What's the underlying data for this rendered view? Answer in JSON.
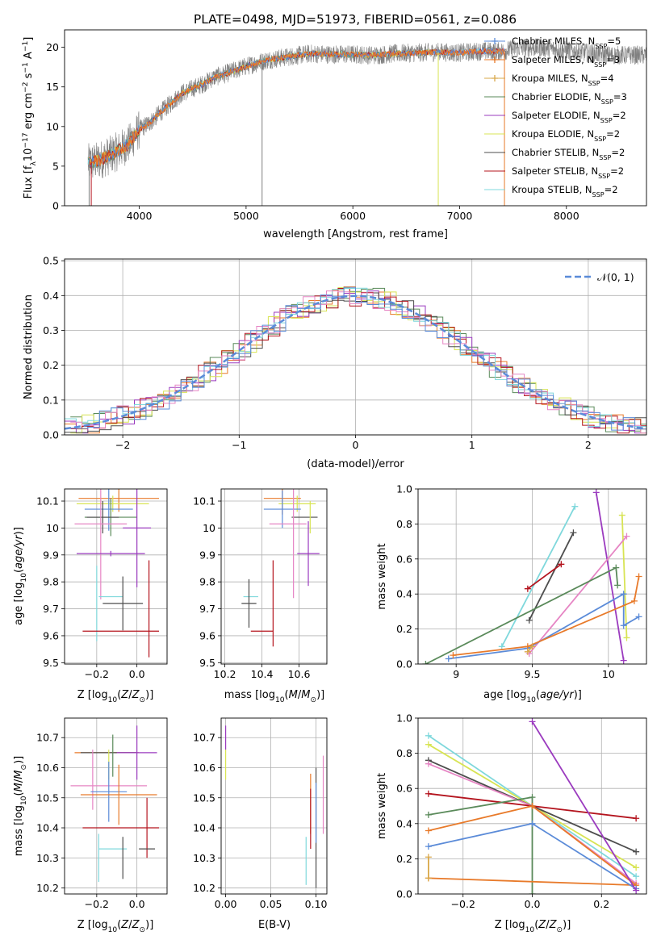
{
  "figure_title": "PLATE=0498, MJD=51973, FIBERID=0561, z=0.086",
  "colors": {
    "Chabrier MILES": "#5b8bd8",
    "Salpeter MILES": "#e87a2a",
    "Kroupa MILES": "#d9a84a",
    "Chabrier ELODIE": "#5a8a5a",
    "Salpeter ELODIE": "#9b3bbf",
    "Kroupa ELODIE": "#d8e454",
    "Chabrier STELIB": "#4d4d4d",
    "Salpeter STELIB": "#b4141e",
    "Kroupa STELIB": "#7fd8dc",
    "Pink": "#e685c4",
    "data": "#808080"
  },
  "chart_data": [
    {
      "id": "spectrum",
      "type": "line",
      "xlabel": "wavelength [Angstrom, rest frame]",
      "ylabel": "Flux [fλ10⁻¹⁷ erg cm⁻² s⁻¹ A⁻¹]",
      "xlim": [
        3300,
        8750
      ],
      "ylim": [
        0,
        22.2
      ],
      "xticks": [
        4000,
        5000,
        6000,
        7000,
        8000
      ],
      "yticks": [
        0,
        5,
        10,
        15,
        20
      ],
      "grid": false,
      "legend_position": "top-right",
      "legend": [
        {
          "name": "Chabrier MILES, N",
          "nssp": 5,
          "marker": "+"
        },
        {
          "name": "Salpeter MILES, N",
          "nssp": 3,
          "marker": "+"
        },
        {
          "name": "Kroupa MILES, N",
          "nssp": 4,
          "marker": "+"
        },
        {
          "name": "Chabrier ELODIE, N",
          "nssp": 3,
          "marker": ""
        },
        {
          "name": "Salpeter ELODIE, N",
          "nssp": 2,
          "marker": ""
        },
        {
          "name": "Kroupa ELODIE, N",
          "nssp": 2,
          "marker": ""
        },
        {
          "name": "Chabrier STELIB, N",
          "nssp": 2,
          "marker": ""
        },
        {
          "name": "Salpeter STELIB, N",
          "nssp": 2,
          "marker": ""
        },
        {
          "name": "Kroupa STELIB, N",
          "nssp": 2,
          "marker": ""
        }
      ],
      "legend_sub": "SSP",
      "continuum_wavelength": [
        3520,
        3600,
        3700,
        3800,
        3900,
        4000,
        4100,
        4200,
        4300,
        4400,
        4500,
        4600,
        4700,
        4800,
        4900,
        5000,
        5200,
        5400,
        5600,
        5800,
        6000,
        6200,
        6400,
        6600,
        6800,
        7000,
        7200,
        7400,
        7600,
        7800,
        8000,
        8200,
        8400
      ],
      "continuum_flux": [
        5.4,
        5.6,
        6.2,
        6.9,
        7.8,
        9.6,
        10.5,
        11.8,
        13.0,
        14.2,
        14.8,
        15.4,
        16.2,
        16.6,
        17.1,
        17.6,
        18.4,
        18.8,
        19.2,
        19.1,
        19.1,
        19.0,
        19.2,
        19.3,
        19.4,
        19.3,
        19.5,
        19.5,
        20.0,
        19.9,
        19.6,
        19.3,
        19.0
      ]
    },
    {
      "id": "residuals",
      "type": "line",
      "xlabel": "(data-model)/error",
      "ylabel": "Normed distribution",
      "xlim": [
        -2.5,
        2.5
      ],
      "ylim": [
        0,
        0.505
      ],
      "xticks": [
        -2,
        -1,
        0,
        1,
        2
      ],
      "xtick_labels": [
        "−2",
        "−1",
        "0",
        "1",
        "2"
      ],
      "yticks": [
        0,
        0.1,
        0.2,
        0.3,
        0.4,
        0.5
      ],
      "ytick_labels": [
        "0.0",
        "0.1",
        "0.2",
        "0.3",
        "0.4",
        "0.5"
      ],
      "grid": true,
      "legend_label": "𝒩(0, 1)",
      "legend_position": "top-right",
      "series": [
        {
          "name": "N(0,1)",
          "type": "gaussian",
          "mean": 0,
          "sigma": 1,
          "style": "dashed"
        }
      ],
      "histograms": {
        "bin_width": 0.1,
        "x_start": -2.5,
        "note_colors": [
          "#e87a2a",
          "#5a8a5a",
          "#9b3bbf",
          "#d8e454",
          "#4d4d4d",
          "#b4141e",
          "#7fd8dc",
          "#e685c4",
          "#5b8bd8"
        ]
      }
    },
    {
      "id": "age_vs_Z",
      "type": "scatter",
      "xlabel": "Z [log₁₀(Z/Z⊙)]",
      "ylabel": "age  [log₁₀(age/yr)]",
      "xlim": [
        -0.36,
        0.15
      ],
      "ylim": [
        9.495,
        10.145
      ],
      "xticks": [
        -0.2,
        0.0
      ],
      "xtick_labels": [
        "−0.2",
        "0.0"
      ],
      "yticks": [
        9.5,
        9.6,
        9.7,
        9.8,
        9.9,
        10.0,
        10.1
      ],
      "grid": true,
      "points": [
        {
          "color": "Salpeter MILES",
          "x": -0.09,
          "xerr": 0.2,
          "y": 10.11,
          "yerr": 0.05
        },
        {
          "color": "Kroupa ELODIE",
          "x": -0.12,
          "xerr": 0.18,
          "y": 10.09,
          "yerr": 0.03
        },
        {
          "color": "Chabrier MILES",
          "x": -0.14,
          "xerr": 0.12,
          "y": 10.07,
          "yerr": 0.08
        },
        {
          "color": "Chabrier ELODIE",
          "x": -0.13,
          "xerr": 0.13,
          "y": 10.04,
          "yerr": 0.07
        },
        {
          "color": "Chabrier STELIB",
          "x": -0.17,
          "xerr": 0.08,
          "y": 10.04,
          "yerr": 0.06
        },
        {
          "color": "Pink",
          "x": -0.18,
          "xerr": 0.13,
          "y": 10.015,
          "yerr": 0.28
        },
        {
          "color": "Salpeter ELODIE",
          "x": 0.0,
          "xerr": 0.07,
          "y": 10.0,
          "yerr": 0.22
        },
        {
          "color": "Salpeter ELODIE",
          "x": -0.13,
          "xerr": 0.17,
          "y": 9.905,
          "yerr": 0.01
        },
        {
          "color": "Kroupa STELIB",
          "x": -0.2,
          "xerr": 0.0,
          "y": 9.72,
          "yerr": 0.14
        },
        {
          "color": "Kroupa STELIB",
          "x": -0.13,
          "xerr": 0.06,
          "y": 9.745,
          "yerr": 0.0
        },
        {
          "color": "Chabrier STELIB",
          "x": -0.07,
          "xerr": 0.1,
          "y": 9.72,
          "yerr": 0.1
        },
        {
          "color": "Salpeter STELIB",
          "x": -0.08,
          "xerr": 0.19,
          "y": 9.617,
          "yerr": 0.0
        },
        {
          "color": "Salpeter STELIB",
          "x": 0.06,
          "xerr": 0.0,
          "y": 9.7,
          "yerr": 0.18
        }
      ]
    },
    {
      "id": "age_vs_mass",
      "type": "scatter",
      "xlabel": "mass [log₁₀(M/M⊙)]",
      "xlim": [
        10.18,
        10.75
      ],
      "ylim": [
        9.495,
        10.145
      ],
      "xticks": [
        10.2,
        10.4,
        10.6
      ],
      "yticks": [
        9.5,
        9.6,
        9.7,
        9.8,
        9.9,
        10.0,
        10.1
      ],
      "grid": true,
      "points": [
        {
          "color": "Salpeter MILES",
          "x": 10.51,
          "xerr": 0.1,
          "y": 10.11,
          "yerr": 0.06
        },
        {
          "color": "Kroupa ELODIE",
          "x": 10.59,
          "xerr": 0.1,
          "y": 10.09,
          "yerr": 0.03
        },
        {
          "color": "Chabrier MILES",
          "x": 10.51,
          "xerr": 0.1,
          "y": 10.07,
          "yerr": 0.07
        },
        {
          "color": "Chabrier STELIB",
          "x": 10.63,
          "xerr": 0.07,
          "y": 10.04,
          "yerr": 0.0
        },
        {
          "color": "Kroupa ELODIE",
          "x": 10.66,
          "xerr": 0.0,
          "y": 10.04,
          "yerr": 0.06
        },
        {
          "color": "Pink",
          "x": 10.54,
          "xerr": 0.1,
          "y": 10.015,
          "yerr": 0.0
        },
        {
          "color": "Pink",
          "x": 10.57,
          "xerr": 0.0,
          "y": 9.96,
          "yerr": 0.22
        },
        {
          "color": "Salpeter ELODIE",
          "x": 10.65,
          "xerr": 0.06,
          "y": 9.905,
          "yerr": 0.12
        },
        {
          "color": "Kroupa STELIB",
          "x": 10.34,
          "xerr": 0.04,
          "y": 9.745,
          "yerr": 0.0
        },
        {
          "color": "Chabrier STELIB",
          "x": 10.33,
          "xerr": 0.04,
          "y": 9.72,
          "yerr": 0.09
        },
        {
          "color": "Salpeter STELIB",
          "x": 10.4,
          "xerr": 0.06,
          "y": 9.617,
          "yerr": 0.0
        },
        {
          "color": "Salpeter STELIB",
          "x": 10.46,
          "xerr": 0.0,
          "y": 9.72,
          "yerr": 0.16
        }
      ]
    },
    {
      "id": "weight_vs_age",
      "type": "line",
      "xlabel": "age  [log₁₀(age/yr)]",
      "ylabel": "mass weight",
      "xlim": [
        8.75,
        10.25
      ],
      "ylim": [
        0,
        1.0
      ],
      "xticks": [
        9.0,
        9.5,
        10.0
      ],
      "yticks": [
        0,
        0.2,
        0.4,
        0.6,
        0.8,
        1.0
      ],
      "ytick_labels": [
        "0.0",
        "0.2",
        "0.4",
        "0.6",
        "0.8",
        "1.0"
      ],
      "grid": true,
      "series": [
        {
          "color": "Kroupa STELIB",
          "points": [
            [
              9.3,
              0.1
            ],
            [
              9.78,
              0.9
            ]
          ]
        },
        {
          "color": "Salpeter ELODIE",
          "points": [
            [
              9.92,
              0.98
            ],
            [
              10.1,
              0.02
            ]
          ]
        },
        {
          "color": "Chabrier STELIB",
          "points": [
            [
              9.48,
              0.25
            ],
            [
              9.77,
              0.75
            ]
          ]
        },
        {
          "color": "Salpeter STELIB",
          "points": [
            [
              9.47,
              0.43
            ],
            [
              9.69,
              0.57
            ]
          ]
        },
        {
          "color": "Kroupa ELODIE",
          "points": [
            [
              10.09,
              0.85
            ],
            [
              10.12,
              0.15
            ]
          ]
        },
        {
          "color": "Pink",
          "points": [
            [
              9.48,
              0.06
            ],
            [
              10.12,
              0.73
            ]
          ]
        },
        {
          "color": "Chabrier ELODIE",
          "points": [
            [
              8.8,
              0.0
            ],
            [
              10.05,
              0.55
            ],
            [
              10.06,
              0.45
            ]
          ]
        },
        {
          "color": "Chabrier MILES",
          "points": [
            [
              8.95,
              0.03
            ],
            [
              9.47,
              0.09
            ],
            [
              10.1,
              0.4
            ],
            [
              10.1,
              0.22
            ],
            [
              10.2,
              0.27
            ]
          ]
        },
        {
          "color": "Salpeter MILES",
          "points": [
            [
              8.98,
              0.05
            ],
            [
              9.47,
              0.1
            ],
            [
              10.17,
              0.36
            ],
            [
              10.2,
              0.5
            ]
          ]
        },
        {
          "color": "Kroupa MILES",
          "points": [
            [
              9.47,
              0.07
            ],
            [
              9.5,
              0.1
            ]
          ]
        }
      ]
    },
    {
      "id": "mass_vs_Z",
      "type": "scatter",
      "xlabel": "Z [log₁₀(Z/Z⊙)]",
      "ylabel": "mass [log₁₀(M/M⊙)]",
      "xlim": [
        -0.36,
        0.15
      ],
      "ylim": [
        10.18,
        10.765
      ],
      "xticks": [
        -0.2,
        0.0
      ],
      "xtick_labels": [
        "−0.2",
        "0.0"
      ],
      "yticks": [
        10.2,
        10.3,
        10.4,
        10.5,
        10.6,
        10.7
      ],
      "grid": true,
      "points": [
        {
          "color": "Salpeter MILES",
          "x": -0.15,
          "xerr": 0.16,
          "y": 10.65,
          "yerr": 0.0
        },
        {
          "color": "Chabrier STELIB",
          "x": -0.14,
          "xerr": 0.14,
          "y": 10.65,
          "yerr": 0.0
        },
        {
          "color": "Chabrier ELODIE",
          "x": -0.12,
          "xerr": 0.0,
          "y": 10.64,
          "yerr": 0.07
        },
        {
          "color": "Salpeter ELODIE",
          "x": 0.0,
          "xerr": 0.1,
          "y": 10.65,
          "yerr": 0.09
        },
        {
          "color": "Kroupa ELODIE",
          "x": -0.14,
          "xerr": 0.0,
          "y": 10.61,
          "yerr": 0.05
        },
        {
          "color": "Pink",
          "x": -0.22,
          "xerr": 0.0,
          "y": 10.56,
          "yerr": 0.1
        },
        {
          "color": "Pink",
          "x": -0.14,
          "xerr": 0.19,
          "y": 10.54,
          "yerr": 0.0
        },
        {
          "color": "Chabrier MILES",
          "x": -0.14,
          "xerr": 0.09,
          "y": 10.52,
          "yerr": 0.1
        },
        {
          "color": "Salpeter MILES",
          "x": -0.09,
          "xerr": 0.19,
          "y": 10.51,
          "yerr": 0.1
        },
        {
          "color": "Salpeter STELIB",
          "x": -0.08,
          "xerr": 0.19,
          "y": 10.4,
          "yerr": 0.0
        },
        {
          "color": "Salpeter STELIB",
          "x": 0.05,
          "xerr": 0.0,
          "y": 10.4,
          "yerr": 0.1
        },
        {
          "color": "Kroupa STELIB",
          "x": -0.19,
          "xerr": 0.0,
          "y": 10.3,
          "yerr": 0.08
        },
        {
          "color": "Kroupa STELIB",
          "x": -0.12,
          "xerr": 0.07,
          "y": 10.33,
          "yerr": 0.0
        },
        {
          "color": "Chabrier STELIB",
          "x": -0.07,
          "xerr": 0.0,
          "y": 10.3,
          "yerr": 0.07
        },
        {
          "color": "Chabrier STELIB",
          "x": 0.05,
          "xerr": 0.04,
          "y": 10.33,
          "yerr": 0.0
        }
      ]
    },
    {
      "id": "mass_vs_ebv",
      "type": "scatter",
      "xlabel": "E(B-V)",
      "xlim": [
        -0.005,
        0.112
      ],
      "ylim": [
        10.18,
        10.765
      ],
      "xticks": [
        0.0,
        0.05,
        0.1
      ],
      "xtick_labels": [
        "0.00",
        "0.05",
        "0.10"
      ],
      "yticks": [
        10.2,
        10.3,
        10.4,
        10.5,
        10.6,
        10.7
      ],
      "grid": true,
      "points": [
        {
          "color": "Salpeter ELODIE",
          "x": 0.0,
          "xerr": 0.0,
          "y": 10.7,
          "yerr": 0.04
        },
        {
          "color": "Kroupa ELODIE",
          "x": 0.0,
          "xerr": 0.0,
          "y": 10.61,
          "yerr": 0.05
        },
        {
          "color": "Pink",
          "x": 0.108,
          "xerr": 0.0,
          "y": 10.51,
          "yerr": 0.13
        },
        {
          "color": "Salpeter MILES",
          "x": 0.094,
          "xerr": 0.0,
          "y": 10.48,
          "yerr": 0.1
        },
        {
          "color": "Salpeter STELIB",
          "x": 0.094,
          "xerr": 0.0,
          "y": 10.43,
          "yerr": 0.1
        },
        {
          "color": "Chabrier STELIB",
          "x": 0.1,
          "xerr": 0.0,
          "y": 10.4,
          "yerr": 0.2
        },
        {
          "color": "Chabrier MILES",
          "x": 0.1,
          "xerr": 0.0,
          "y": 10.45,
          "yerr": 0.1
        },
        {
          "color": "Kroupa STELIB",
          "x": 0.089,
          "xerr": 0.0,
          "y": 10.29,
          "yerr": 0.08
        }
      ]
    },
    {
      "id": "weight_vs_Z",
      "type": "line",
      "xlabel": "Z [log₁₀(Z/Z⊙)]",
      "ylabel": "mass weight",
      "xlim": [
        -0.33,
        0.33
      ],
      "ylim": [
        0,
        1.0
      ],
      "xticks": [
        -0.2,
        0.0,
        0.2
      ],
      "xtick_labels": [
        "−0.2",
        "0.0",
        "0.2"
      ],
      "yticks": [
        0,
        0.2,
        0.4,
        0.6,
        0.8,
        1.0
      ],
      "ytick_labels": [
        "0.0",
        "0.2",
        "0.4",
        "0.6",
        "0.8",
        "1.0"
      ],
      "grid": true,
      "series": [
        {
          "color": "Kroupa STELIB",
          "points": [
            [
              -0.3,
              0.9
            ],
            [
              0.0,
              0.5
            ],
            [
              0.3,
              0.1
            ]
          ]
        },
        {
          "color": "Kroupa ELODIE",
          "points": [
            [
              -0.3,
              0.85
            ],
            [
              0.0,
              0.5
            ],
            [
              0.3,
              0.15
            ]
          ]
        },
        {
          "color": "Chabrier STELIB",
          "points": [
            [
              -0.3,
              0.76
            ],
            [
              0.0,
              0.5
            ],
            [
              0.3,
              0.24
            ]
          ]
        },
        {
          "color": "Pink",
          "points": [
            [
              -0.3,
              0.74
            ],
            [
              0.0,
              0.5
            ],
            [
              0.3,
              0.06
            ]
          ]
        },
        {
          "color": "Salpeter STELIB",
          "points": [
            [
              -0.3,
              0.57
            ],
            [
              0.0,
              0.5
            ],
            [
              0.3,
              0.43
            ]
          ]
        },
        {
          "color": "Chabrier ELODIE",
          "points": [
            [
              -0.3,
              0.45
            ],
            [
              0.0,
              0.55
            ],
            [
              0.0,
              0.0
            ]
          ]
        },
        {
          "color": "Salpeter MILES",
          "points": [
            [
              -0.3,
              0.36
            ],
            [
              0.0,
              0.5
            ],
            [
              0.3,
              0.05
            ],
            [
              -0.3,
              0.09
            ]
          ]
        },
        {
          "color": "Chabrier MILES",
          "points": [
            [
              -0.3,
              0.27
            ],
            [
              0.0,
              0.4
            ],
            [
              0.3,
              0.03
            ]
          ]
        },
        {
          "color": "Salpeter ELODIE",
          "points": [
            [
              0.0,
              0.98
            ],
            [
              0.3,
              0.02
            ]
          ]
        },
        {
          "color": "Kroupa MILES",
          "points": [
            [
              -0.3,
              0.21
            ],
            [
              -0.3,
              0.09
            ]
          ]
        }
      ]
    }
  ]
}
